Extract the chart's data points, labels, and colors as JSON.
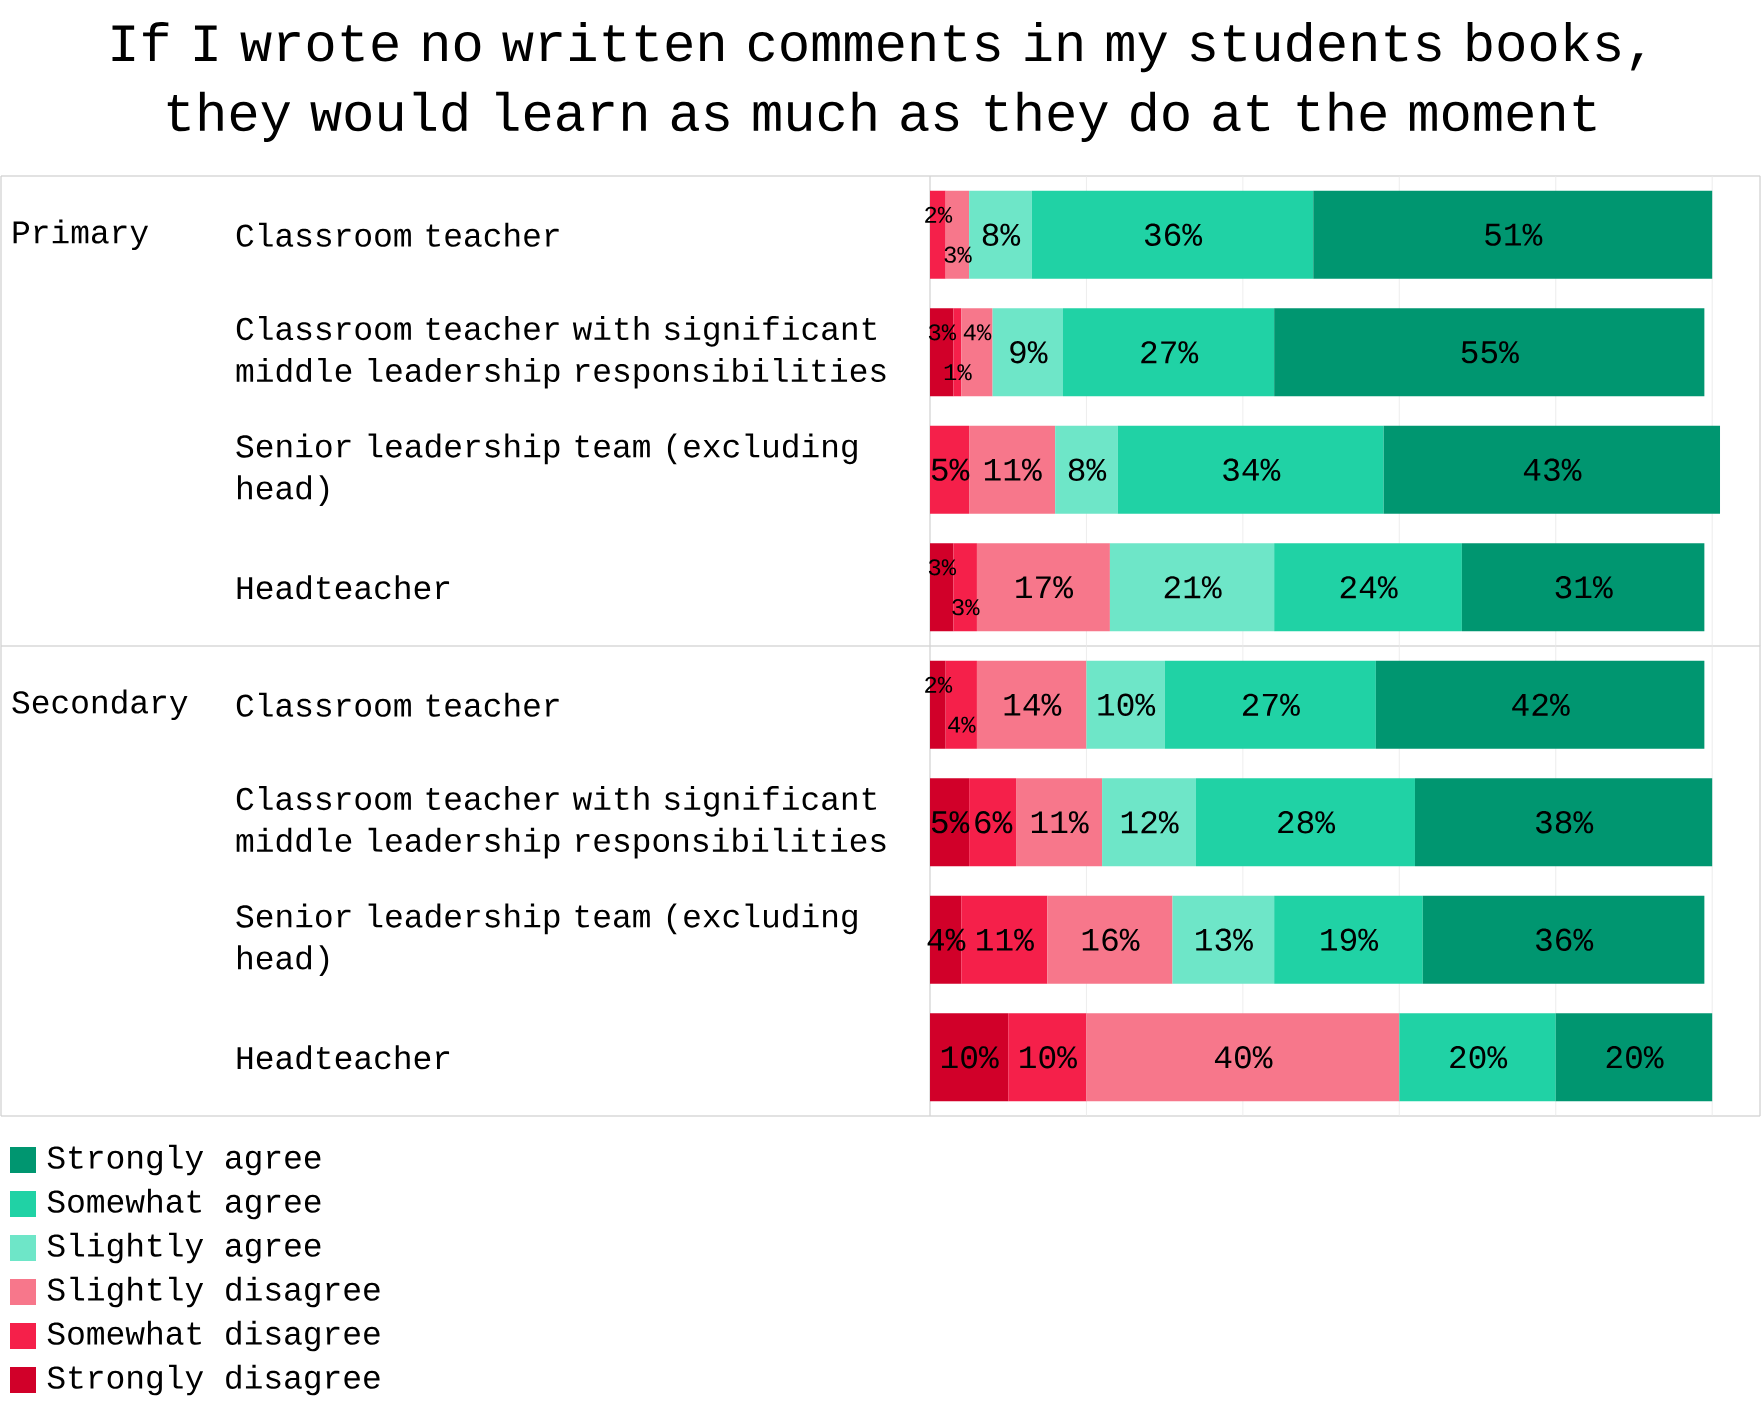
{
  "chart_data": {
    "type": "bar",
    "orientation": "horizontal",
    "stacked": true,
    "title": "If I wrote no written comments in my students books, they would learn as much as they do at the moment",
    "categories": [
      "Classroom teacher",
      "Classroom teacher with significant middle leadership responsibilities",
      "Senior leadership team (excluding head)",
      "Headteacher",
      "Classroom teacher",
      "Classroom teacher with significant middle leadership responsibilities",
      "Senior leadership team (excluding head)",
      "Headteacher"
    ],
    "annotations": [
      "Primary",
      "Secondary"
    ],
    "series": [
      {
        "name": "Strongly disagree",
        "color": "#d10029",
        "values": [
          null,
          3,
          null,
          3,
          2,
          5,
          4,
          10
        ],
        "value_labels": [
          null,
          "3%",
          null,
          "3%",
          "2%",
          "5%",
          "4%",
          "10%"
        ]
      },
      {
        "name": "Somewhat disagree",
        "color": "#f5204a",
        "values": [
          2,
          1,
          5,
          3,
          4,
          6,
          11,
          10
        ],
        "value_labels": [
          "2%",
          "1%",
          "5%",
          "3%",
          "4%",
          "6%",
          "11%",
          "10%"
        ]
      },
      {
        "name": "Slightly disagree",
        "color": "#f7778b",
        "values": [
          3,
          4,
          11,
          17,
          14,
          11,
          16,
          40
        ],
        "value_labels": [
          "3%",
          "4%",
          "11%",
          "17%",
          "14%",
          "11%",
          "16%",
          "40%"
        ]
      },
      {
        "name": "Slightly agree",
        "color": "#6ee6c8",
        "values": [
          8,
          9,
          8,
          21,
          10,
          12,
          13,
          null
        ],
        "value_labels": [
          "8%",
          "9%",
          "8%",
          "21%",
          "10%",
          "12%",
          "13%",
          null
        ]
      },
      {
        "name": "Somewhat agree",
        "color": "#20d2a5",
        "values": [
          36,
          27,
          34,
          24,
          27,
          28,
          19,
          20
        ],
        "value_labels": [
          "36%",
          "27%",
          "34%",
          "24%",
          "27%",
          "28%",
          "19%",
          "20%"
        ]
      },
      {
        "name": "Strongly agree",
        "color": "#009670",
        "values": [
          51,
          55,
          43,
          31,
          42,
          38,
          36,
          20
        ],
        "value_labels": [
          "51%",
          "55%",
          "43%",
          "31%",
          "42%",
          "38%",
          "36%",
          "20%"
        ]
      }
    ],
    "xlim": [
      0,
      101
    ],
    "xticks": [
      {
        "value": 0,
        "label": null
      },
      {
        "value": 20,
        "label": null
      },
      {
        "value": 40,
        "label": null
      },
      {
        "value": 60,
        "label": null
      },
      {
        "value": 80,
        "label": null
      },
      {
        "value": 100,
        "label": null
      }
    ],
    "tick_labels": "y",
    "grid": "x",
    "legend": "bottom left"
  }
}
